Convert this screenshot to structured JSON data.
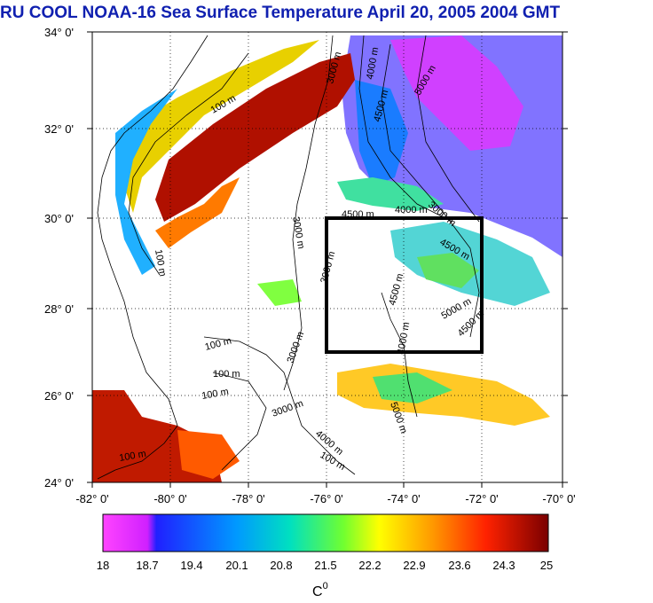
{
  "title": "RU COOL  NOAA-16 Sea Surface Temperature April 20, 2005 2004 GMT",
  "y_ticks": [
    "34° 0'",
    "32° 0'",
    "30° 0'",
    "28° 0'",
    "26° 0'",
    "24° 0'"
  ],
  "x_ticks": [
    "-82° 0'",
    "-80° 0'",
    "-78° 0'",
    "-76° 0'",
    "-74° 0'",
    "-72° 0'",
    "-70° 0'"
  ],
  "colorbar": {
    "labels": [
      "18",
      "18.7",
      "19.4",
      "20.1",
      "20.8",
      "21.5",
      "22.2",
      "22.9",
      "23.6",
      "24.3",
      "25"
    ],
    "unit": "C",
    "unit_sup": "0"
  },
  "contour_labels": [
    "100 m",
    "3000 m",
    "4000 m",
    "4500 m",
    "5000 m",
    "4500 m",
    "4000 m",
    "3000 m",
    "3000 m",
    "4500 m",
    "5000 m",
    "4500 m",
    "4000 m",
    "4500 m",
    "3000 m",
    "100 m",
    "100 m",
    "100 m",
    "100 m",
    "3000 m",
    "3000 m",
    "4000 m",
    "5000 m",
    "100 m",
    "100 m"
  ],
  "colors": {
    "title": "#1020b0",
    "land": "#ffffff",
    "box": "#000000"
  }
}
